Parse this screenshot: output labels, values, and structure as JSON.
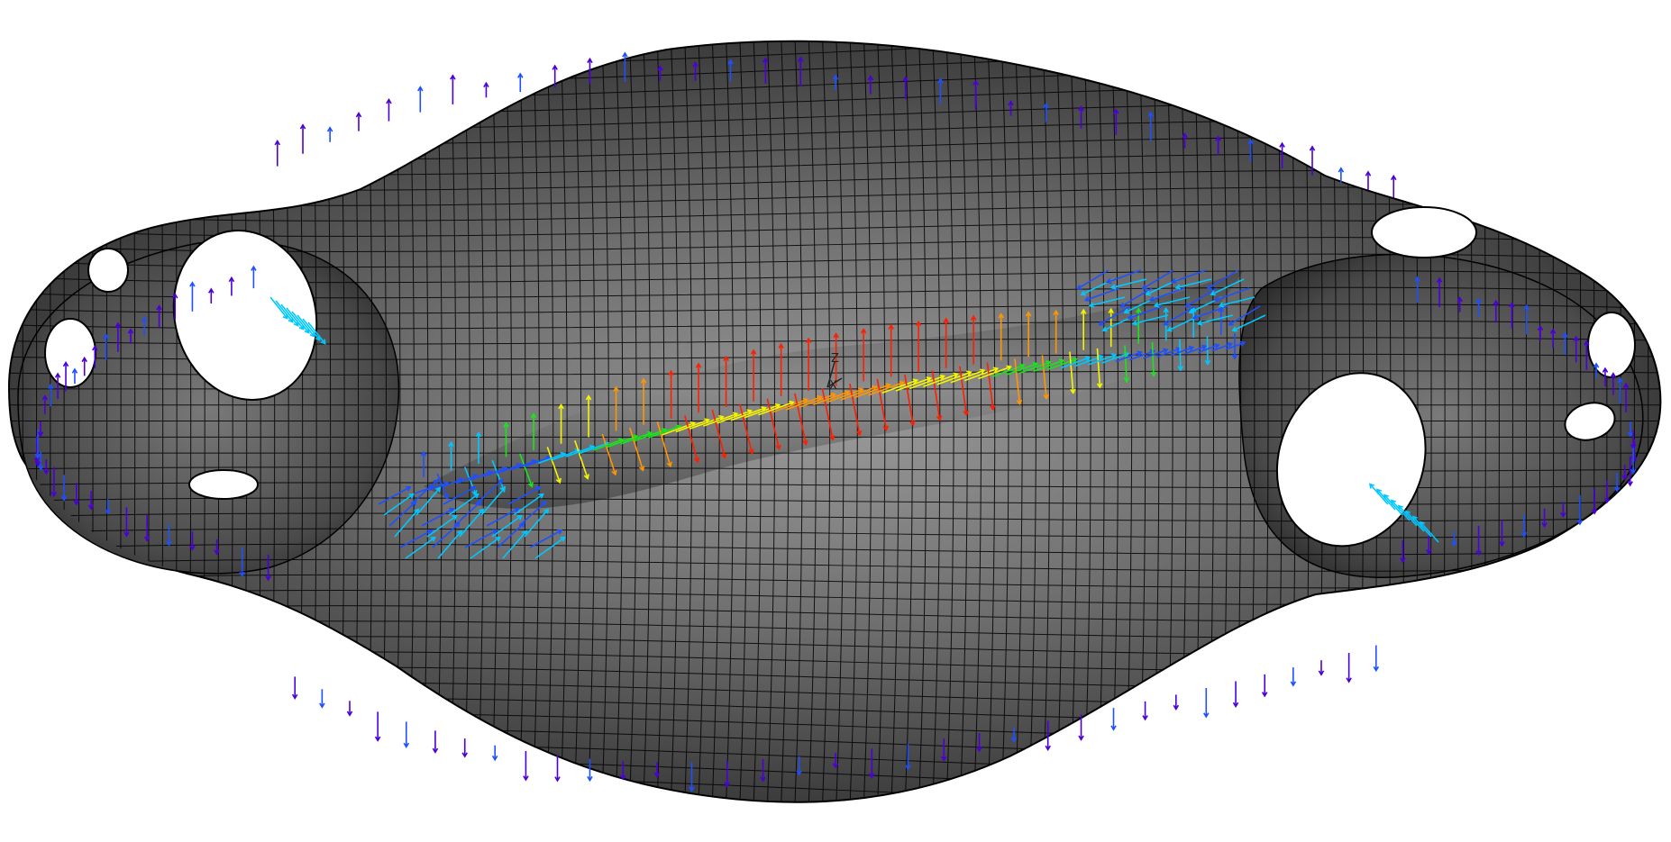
{
  "view": {
    "background": "#ffffff",
    "mesh_fill_light": "#8c8c8c",
    "mesh_fill_dark": "#262626",
    "mesh_edge": "#000000",
    "rib_count": 24,
    "ring_count": 12,
    "vector_colormap": [
      "#4b00d9",
      "#1e50ff",
      "#00c8ff",
      "#19e619",
      "#f5f500",
      "#ff9600",
      "#ff1e00"
    ]
  },
  "triad": {
    "z_label": "Z",
    "x_label": "X"
  },
  "holes": [
    {
      "name": "left-large-hole",
      "count": 1
    },
    {
      "name": "left-small-hole",
      "count": 3
    },
    {
      "name": "right-large-hole",
      "count": 1
    },
    {
      "name": "right-small-hole",
      "count": 3
    }
  ]
}
